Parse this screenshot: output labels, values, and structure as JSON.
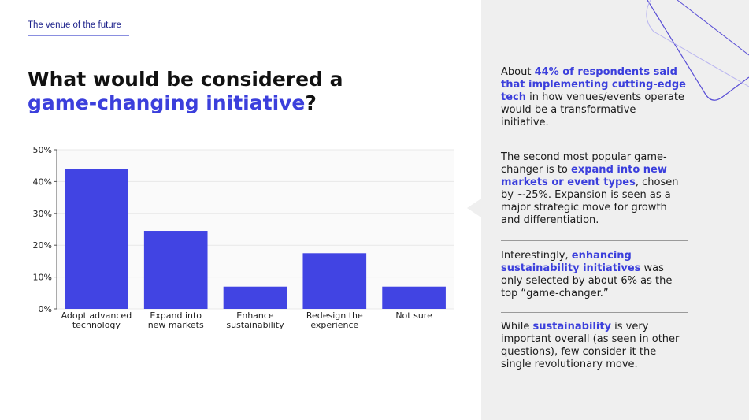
{
  "eyebrow": "The venue of the future",
  "headline": {
    "line1": "What would be considered a",
    "highlight": "game-changing initiative",
    "end": "?"
  },
  "chart_data": {
    "type": "bar",
    "categories": [
      [
        "Adopt advanced",
        "technology"
      ],
      [
        "Expand into",
        "new markets"
      ],
      [
        "Enhance",
        "sustainability"
      ],
      [
        "Redesign the",
        "experience"
      ],
      [
        "Not sure"
      ]
    ],
    "values": [
      44,
      24.5,
      7,
      17.5,
      7
    ],
    "ylim": [
      0,
      50
    ],
    "yticks": [
      "0%",
      "10%",
      "20%",
      "30%",
      "40%",
      "50%"
    ],
    "grid": true,
    "bar_color": "#4144e3"
  },
  "insights": [
    {
      "parts": [
        {
          "t": "About "
        },
        {
          "t": "44% of respondents said that implementing cutting-edge tech",
          "hl": true
        },
        {
          "t": " in how venues/events operate would be a transformative initiative."
        }
      ]
    },
    {
      "parts": [
        {
          "t": "The second most popular game-changer is to "
        },
        {
          "t": "expand into new markets or event types",
          "hl": true
        },
        {
          "t": ", chosen by ~25%. Expansion is seen as a major strategic move for growth and differentiation."
        }
      ]
    },
    {
      "parts": [
        {
          "t": "Interestingly, "
        },
        {
          "t": "enhancing sustainability initiatives",
          "hl": true
        },
        {
          "t": " was only selected by about 6% as the top “game-changer.”"
        }
      ]
    },
    {
      "parts": [
        {
          "t": "While "
        },
        {
          "t": "sustainability",
          "hl": true
        },
        {
          "t": " is very important overall (as seen in other questions), few consider it the single revolutionary move."
        }
      ]
    }
  ],
  "colors": {
    "accent": "#3b3fdc",
    "panel": "#efefef",
    "deco_line": "#5a4fd6"
  }
}
